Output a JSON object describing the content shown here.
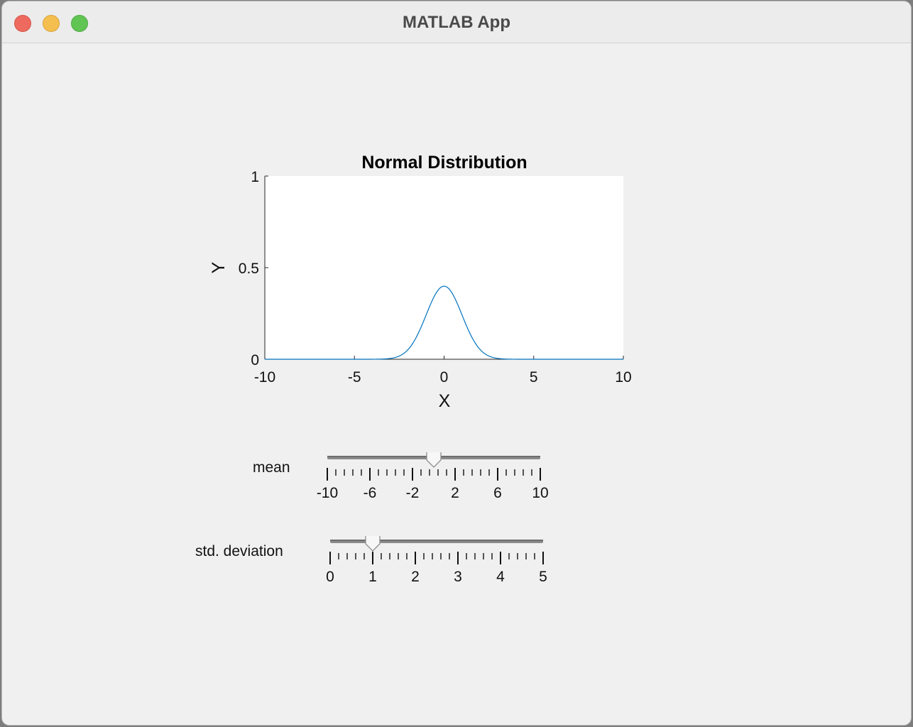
{
  "window": {
    "title": "MATLAB App"
  },
  "chart_data": {
    "type": "line",
    "title": "Normal Distribution",
    "xlabel": "X",
    "ylabel": "Y",
    "xlim": [
      -10,
      10
    ],
    "ylim": [
      0,
      1
    ],
    "xticks": [
      -10,
      -5,
      0,
      5,
      10
    ],
    "xtick_labels": [
      "-10",
      "-5",
      "0",
      "5",
      "10"
    ],
    "yticks": [
      0,
      0.5,
      1
    ],
    "ytick_labels": [
      "0",
      "0.5",
      "1"
    ],
    "grid": false,
    "line_color": "#0072bd",
    "series": [
      {
        "function": "normal_pdf",
        "mean": 0,
        "std": 1,
        "x_range": [
          -10,
          10
        ]
      }
    ]
  },
  "controls": {
    "mean": {
      "label": "mean",
      "min": -10,
      "max": 10,
      "value": 0,
      "major_ticks": [
        -10,
        -6,
        -2,
        2,
        6,
        10
      ],
      "major_tick_labels": [
        "-10",
        "-6",
        "-2",
        "2",
        "6",
        "10"
      ],
      "minor_step": 0.8
    },
    "std": {
      "label": "std. deviation",
      "min": 0,
      "max": 5,
      "value": 1,
      "major_ticks": [
        0,
        1,
        2,
        3,
        4,
        5
      ],
      "major_tick_labels": [
        "0",
        "1",
        "2",
        "3",
        "4",
        "5"
      ],
      "minor_step": 0.2
    }
  }
}
